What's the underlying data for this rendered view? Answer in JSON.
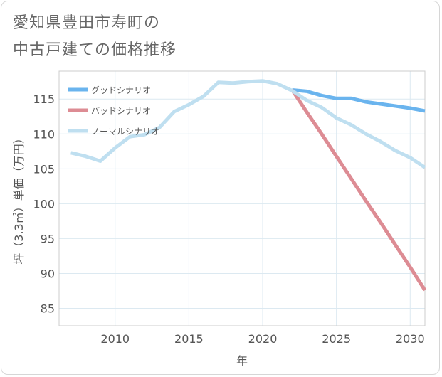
{
  "title_lines": [
    "愛知県豊田市寿町の",
    "中古戸建ての価格推移"
  ],
  "chart_data": {
    "type": "line",
    "xlabel": "年",
    "ylabel": "坪（3.3㎡）単価（万円）",
    "xlim": [
      2006.2,
      2031
    ],
    "ylim": [
      82.5,
      119
    ],
    "x_ticks": [
      2010,
      2015,
      2020,
      2025,
      2030
    ],
    "y_ticks": [
      85,
      90,
      95,
      100,
      105,
      110,
      115
    ],
    "grid": true,
    "legend_position": "top-left",
    "series": [
      {
        "name": "グッドシナリオ",
        "color": "#6ab4ee",
        "x": [
          2022,
          2023,
          2024,
          2025,
          2026,
          2027,
          2028,
          2029,
          2030,
          2031
        ],
        "values": [
          116.3,
          116.1,
          115.5,
          115.1,
          115.1,
          114.6,
          114.3,
          114.0,
          113.7,
          113.3
        ]
      },
      {
        "name": "バッドシナリオ",
        "color": "#dd8c94",
        "x": [
          2022,
          2023,
          2024,
          2025,
          2026,
          2027,
          2028,
          2029,
          2030,
          2031
        ],
        "values": [
          116.3,
          113.1,
          110.0,
          106.8,
          103.6,
          100.4,
          97.3,
          94.1,
          90.9,
          87.6
        ]
      },
      {
        "name": "ノーマルシナリオ",
        "color": "#bfdff0",
        "x": [
          2007,
          2008,
          2009,
          2010,
          2011,
          2012,
          2013,
          2014,
          2015,
          2016,
          2017,
          2018,
          2019,
          2020,
          2021,
          2022,
          2023,
          2024,
          2025,
          2026,
          2027,
          2028,
          2029,
          2030,
          2031
        ],
        "values": [
          107.3,
          106.8,
          106.1,
          108.0,
          109.6,
          109.9,
          110.9,
          113.2,
          114.2,
          115.4,
          117.4,
          117.3,
          117.5,
          117.6,
          117.2,
          116.2,
          114.8,
          113.8,
          112.3,
          111.3,
          110.0,
          108.9,
          107.6,
          106.6,
          105.2
        ]
      }
    ]
  }
}
